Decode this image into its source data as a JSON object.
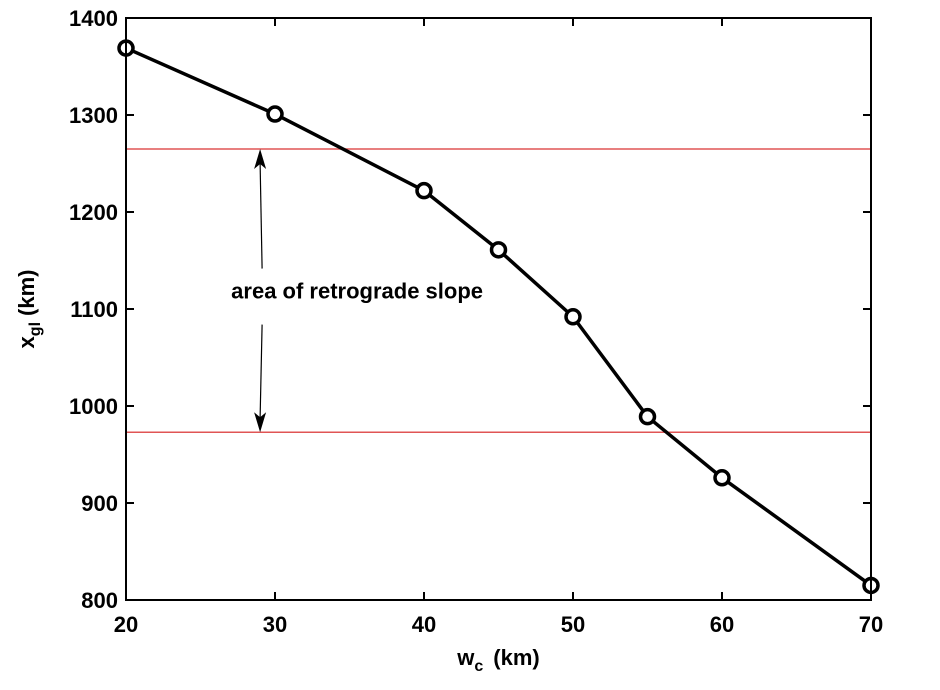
{
  "chart_data": {
    "type": "line",
    "title": "",
    "xlabel": {
      "main": "w",
      "sub": "c",
      "unit": "(km)"
    },
    "ylabel": {
      "main": "x",
      "sub": "gl",
      "unit": "(km)"
    },
    "xlim": [
      20,
      70
    ],
    "ylim": [
      800,
      1400
    ],
    "xticks": [
      20,
      30,
      40,
      50,
      60,
      70
    ],
    "yticks": [
      800,
      900,
      1000,
      1100,
      1200,
      1300,
      1400
    ],
    "grid": false,
    "legend": "none",
    "series": [
      {
        "x": [
          20,
          30,
          40,
          45,
          50,
          55,
          60,
          70
        ],
        "y": [
          1369,
          1301,
          1222,
          1161,
          1092,
          989,
          926,
          815
        ],
        "color": "#000000",
        "marker": "circle"
      }
    ],
    "reference_lines": [
      {
        "y": 1265,
        "color": "#e05555"
      },
      {
        "y": 973,
        "color": "#e05555"
      }
    ],
    "annotation": {
      "text": "area of retrograde slope",
      "arrow_x": 29,
      "arrow_up_to": 1265,
      "arrow_down_to": 973
    }
  }
}
